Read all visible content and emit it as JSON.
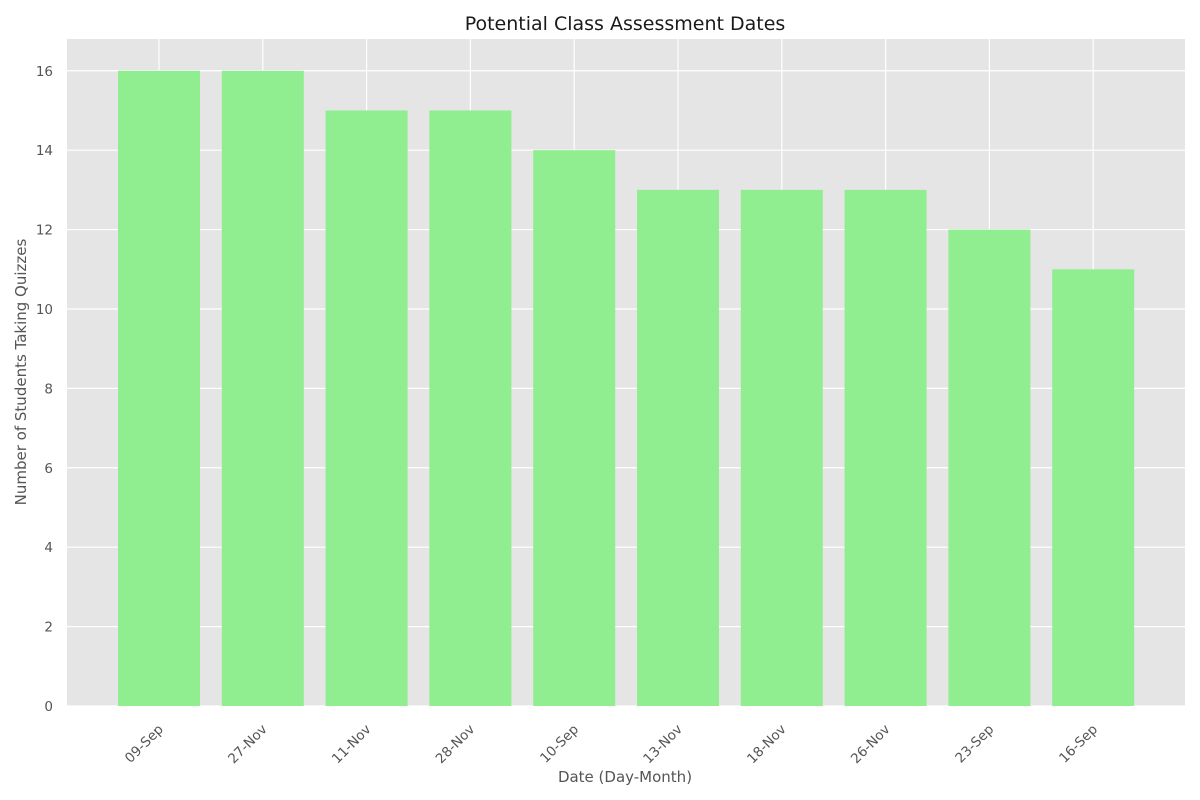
{
  "chart_data": {
    "type": "bar",
    "title": "Potential Class Assessment Dates",
    "xlabel": "Date (Day-Month)",
    "ylabel": "Number of Students Taking Quizzes",
    "categories": [
      "09-Sep",
      "27-Nov",
      "11-Nov",
      "28-Nov",
      "10-Sep",
      "13-Nov",
      "18-Nov",
      "26-Nov",
      "23-Sep",
      "16-Sep"
    ],
    "values": [
      16,
      16,
      15,
      15,
      14,
      13,
      13,
      13,
      12,
      11
    ],
    "ylim": [
      0,
      16.8
    ],
    "yticks": [
      0,
      2,
      4,
      6,
      8,
      10,
      12,
      14,
      16
    ],
    "ytick_labels": [
      "0",
      "2",
      "4",
      "6",
      "8",
      "10",
      "12",
      "14",
      "16"
    ],
    "bar_color": "#90ee90",
    "plot_background": "#e5e5e5",
    "grid": true,
    "grid_color": "#ffffff",
    "xtick_rotation": "45 degrees"
  }
}
